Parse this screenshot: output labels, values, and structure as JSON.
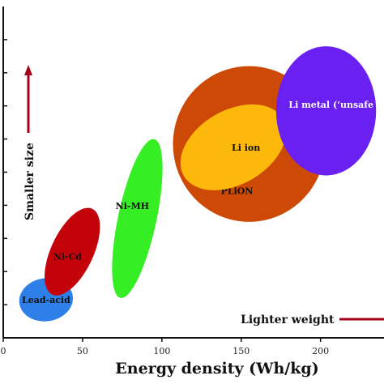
{
  "chart_data": {
    "type": "scatter",
    "title": "",
    "xlabel": "Energy density (Wh/kg)",
    "ylabel": "",
    "xlim": [
      0,
      240
    ],
    "ylim": [
      0,
      10
    ],
    "x_ticks": [
      0,
      50,
      100,
      150,
      200
    ],
    "x_tick_labels": [
      "0",
      "50",
      "100",
      "150",
      "200"
    ],
    "y_ticks": [
      1,
      2,
      3,
      4,
      5,
      6,
      7,
      8,
      9
    ],
    "grid": false,
    "regions": [
      {
        "name": "Lead-acid",
        "x_range": [
          10,
          44
        ],
        "y_range": [
          0.5,
          1.8
        ],
        "color": "#2f7fe8",
        "label_color": "#111111"
      },
      {
        "name": "Ni-Cd",
        "x_range": [
          25,
          62
        ],
        "y_range": [
          1.2,
          4.0
        ],
        "color": "#c4020a",
        "label_color": "#111111"
      },
      {
        "name": "Ni-MH",
        "x_range": [
          65,
          104
        ],
        "y_range": [
          1.2,
          6.0
        ],
        "color": "#35ee23",
        "label_color": "#111111"
      },
      {
        "name": "PLiON",
        "x_range": [
          107,
          203
        ],
        "y_range": [
          3.5,
          8.2
        ],
        "color": "#cc4a05",
        "label_color": "#111111"
      },
      {
        "name": "Li ion",
        "x_range": [
          105,
          185
        ],
        "y_range": [
          4.2,
          7.3
        ],
        "color": "#fdb90b",
        "label_color": "#111111"
      },
      {
        "name": "Li metal (‘unsafe",
        "x_range": [
          172,
          235
        ],
        "y_range": [
          4.9,
          8.8
        ],
        "color": "#6a20f0",
        "label_color": "#ffffff"
      }
    ],
    "annotations": [
      {
        "text": "Smaller size",
        "direction": "up",
        "color": "#a4001a"
      },
      {
        "text": "Lighter weight",
        "direction": "right",
        "color": "#a4001a"
      }
    ]
  }
}
